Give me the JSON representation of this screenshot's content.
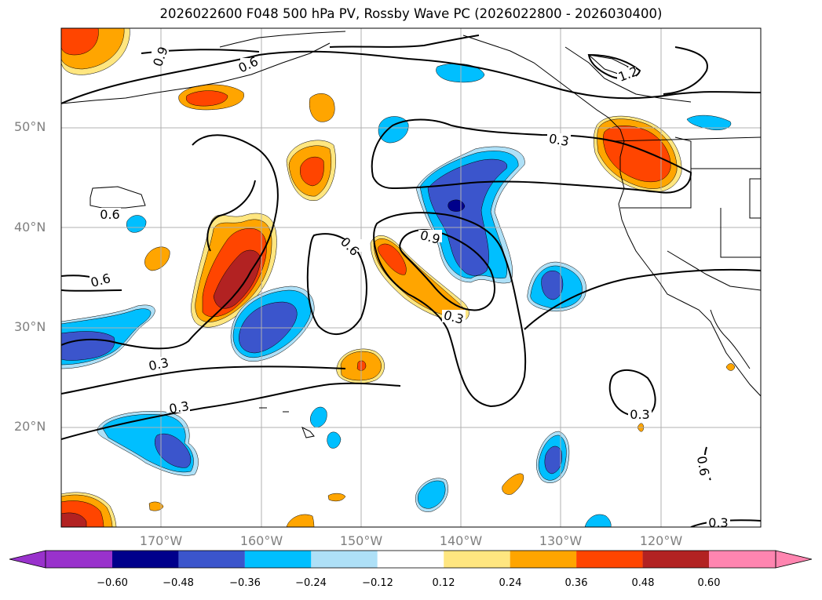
{
  "title": "2026022600 F048 500 hPa PV, Rossby Wave PC (2026022800 - 2026030400)",
  "lat_labels": [
    "50°N",
    "40°N",
    "30°N",
    "20°N"
  ],
  "lon_labels": [
    "170°W",
    "160°W",
    "150°W",
    "140°W",
    "130°W",
    "120°W"
  ],
  "contour_labels": [
    "0.9",
    "0.6",
    "1.2",
    "0.3",
    "0.6",
    "0.6",
    "0.9",
    "0.6",
    "0.3",
    "0.3",
    "0.3",
    "0.3",
    "0.6",
    "0.3"
  ],
  "colorbar": {
    "labels": [
      "−0.60",
      "−0.48",
      "−0.36",
      "−0.24",
      "−0.12",
      "0.12",
      "0.24",
      "0.36",
      "0.48",
      "0.60"
    ],
    "colors": [
      "#9932cc",
      "#00008b",
      "#3b55cc",
      "#00bfff",
      "#aee0f7",
      "#ffffff",
      "#ffe680",
      "#ffa500",
      "#ff4500",
      "#b22222",
      "#ff85b0"
    ]
  },
  "colors": {
    "neg1": "#aee0f7",
    "neg2": "#00bfff",
    "neg3": "#3b55cc",
    "neg4": "#00008b",
    "pos1": "#ffe680",
    "pos2": "#ffa500",
    "pos3": "#ff4500",
    "pos4": "#b22222"
  }
}
